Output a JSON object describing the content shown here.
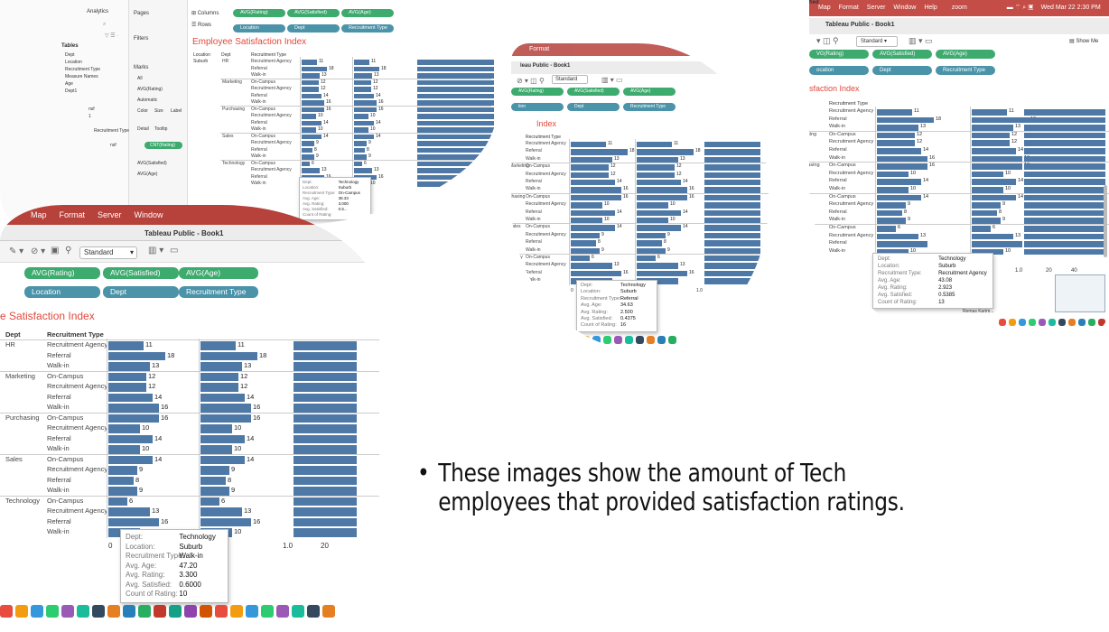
{
  "slide": {
    "bullet": "These images show the amount of Tech employees that provided satisfaction ratings."
  },
  "colors": {
    "bar": "#4e79a7",
    "title": "#e1483b",
    "pill_green": "#3daa6e",
    "pill_blue": "#4a93a8",
    "menu": "#b7413b"
  },
  "screens": {
    "s1": {
      "side_items": [
        "Analytics",
        "Pages",
        "Columns",
        "Rows",
        "Filters",
        "Marks"
      ],
      "tables_header": "Tables",
      "tables": [
        "Dept",
        "Location",
        "Recruitment Type",
        "Measure Names",
        "Age",
        "Dept1"
      ],
      "marks": [
        "All",
        "AVG(Rating)",
        "Automatic",
        "Color",
        "Size",
        "Label",
        "Detail",
        "Tooltip",
        "CNT(Rating)",
        "AVG(Satisfied)",
        "AVG(Age)"
      ],
      "cols": [
        "AVG(Rating)",
        "AVG(Satisfied)",
        "AVG(Age)"
      ],
      "rows": [
        "Location",
        "Dept",
        "Recruitment Type"
      ],
      "title": "Employee Satisfaction Index",
      "hdr": [
        "Location",
        "Dept",
        "Recruitment Type"
      ],
      "location": "Suburb",
      "groups": [
        {
          "dept": "HR",
          "rows": [
            [
              "Recruitment Agency",
              "11"
            ],
            [
              "Referral",
              "18"
            ],
            [
              "Walk-in",
              "13"
            ]
          ]
        },
        {
          "dept": "Marketing",
          "rows": [
            [
              "On-Campus",
              "12"
            ],
            [
              "Recruitment Agency",
              "12"
            ],
            [
              "Referral",
              "14"
            ],
            [
              "Walk-in",
              "16"
            ]
          ]
        },
        {
          "dept": "Purchasing",
          "rows": [
            [
              "On-Campus",
              "16"
            ],
            [
              "Recruitment Agency",
              "10"
            ],
            [
              "Referral",
              "14"
            ],
            [
              "Walk-in",
              "10"
            ]
          ]
        },
        {
          "dept": "Sales",
          "rows": [
            [
              "On-Campus",
              "14"
            ],
            [
              "Recruitment Agency",
              "9"
            ],
            [
              "Referral",
              "8"
            ],
            [
              "Walk-in",
              "9"
            ]
          ]
        },
        {
          "dept": "Technology",
          "rows": [
            [
              "On-Campus",
              "6"
            ],
            [
              "Recruitment Agency",
              "13"
            ],
            [
              "Referral",
              "16"
            ],
            [
              "Walk-in",
              "10"
            ]
          ]
        }
      ],
      "tooltip": [
        [
          "Dept:",
          "Technology"
        ],
        [
          "Location:",
          "Suburb"
        ],
        [
          "Recruitment Type:",
          "On-Campus"
        ],
        [
          "Avg. Age:",
          "38.33"
        ],
        [
          "Avg. Rating:",
          "3.000"
        ],
        [
          "Avg. Satisfied:",
          "0.5..."
        ],
        [
          "Count of Rating:",
          ""
        ]
      ],
      "misc": [
        "Recruitment Type1"
      ]
    },
    "s2": {
      "menu": [
        "Map",
        "Format",
        "Server",
        "Window"
      ],
      "window_title": "Tableau Public - Book1",
      "standard": "Standard",
      "cols": [
        "AVG(Rating)",
        "AVG(Satisfied)",
        "AVG(Age)"
      ],
      "rows": [
        "Location",
        "Dept",
        "Recruitment Type"
      ],
      "title": "e Satisfaction Index",
      "hdr": [
        "Dept",
        "Recruitment Type"
      ],
      "groups": [
        {
          "dept": "HR",
          "rows": [
            [
              "Recruitment Agency",
              "11"
            ],
            [
              "Referral",
              "18"
            ],
            [
              "Walk-in",
              "13"
            ]
          ]
        },
        {
          "dept": "Marketing",
          "rows": [
            [
              "On-Campus",
              "12"
            ],
            [
              "Recruitment Agency",
              "12"
            ],
            [
              "Referral",
              "14"
            ],
            [
              "Walk-in",
              "16"
            ]
          ]
        },
        {
          "dept": "Purchasing",
          "rows": [
            [
              "On-Campus",
              "16"
            ],
            [
              "Recruitment Agency",
              "10"
            ],
            [
              "Referral",
              "14"
            ],
            [
              "Walk-in",
              "10"
            ]
          ]
        },
        {
          "dept": "Sales",
          "rows": [
            [
              "On-Campus",
              "14"
            ],
            [
              "Recruitment Agency",
              "9"
            ],
            [
              "Referral",
              "8"
            ],
            [
              "Walk-in",
              "9"
            ]
          ]
        },
        {
          "dept": "Technology",
          "rows": [
            [
              "On-Campus",
              "6"
            ],
            [
              "Recruitment Agency",
              "13"
            ],
            [
              "Referral",
              "16"
            ],
            [
              "Walk-in",
              "10"
            ]
          ]
        }
      ],
      "tooltip": [
        [
          "Dept:",
          "Technology"
        ],
        [
          "Location:",
          "Suburb"
        ],
        [
          "Recruitment Type:",
          "Walk-in"
        ],
        [
          "Avg. Age:",
          "47.20"
        ],
        [
          "Avg. Rating:",
          "3.300"
        ],
        [
          "Avg. Satisfied:",
          "0.6000"
        ],
        [
          "Count of Rating:",
          "10"
        ]
      ],
      "axis": [
        "0",
        "1.0",
        "20"
      ],
      "axis_title": "fied"
    },
    "s3": {
      "window_title": "leau Public - Book1",
      "standard": "Standard",
      "cols": [
        "AVG(Rating)",
        "AVG(Satisfied)",
        "AVG(Age)"
      ],
      "rows": [
        "tion",
        "Dept",
        "Recruitment Type"
      ],
      "title": "Index",
      "hdr": "Recruitment Type",
      "groups": [
        {
          "dept": "",
          "rows": [
            [
              "Recruitment Agency",
              "11"
            ],
            [
              "Referral",
              "18"
            ],
            [
              "Walk-in",
              "13"
            ]
          ]
        },
        {
          "dept": "Marketing",
          "rows": [
            [
              "On-Campus",
              "12"
            ],
            [
              "Recruitment Agency",
              "12"
            ],
            [
              "Referral",
              "14"
            ],
            [
              "Walk-in",
              "16"
            ]
          ]
        },
        {
          "dept": "chasing",
          "rows": [
            [
              "On-Campus",
              "16"
            ],
            [
              "Recruitment Agency",
              "10"
            ],
            [
              "Referral",
              "14"
            ],
            [
              "Walk-in",
              "10"
            ]
          ]
        },
        {
          "dept": "Sales",
          "rows": [
            [
              "On-Campus",
              "14"
            ],
            [
              "Recruitment Agency",
              "9"
            ],
            [
              "Referral",
              "8"
            ],
            [
              "Walk-in",
              "9"
            ]
          ]
        },
        {
          "dept": "nology",
          "rows": [
            [
              "On-Campus",
              "6"
            ],
            [
              "Recruitment Agency",
              "13"
            ],
            [
              "Referral",
              "16"
            ],
            [
              "Walk-in",
              ""
            ]
          ]
        }
      ],
      "tooltip": [
        [
          "Dept:",
          "Technology"
        ],
        [
          "Location:",
          "Suburb"
        ],
        [
          "Recruitment Type:",
          "Referral"
        ],
        [
          "Avg. Age:",
          "34.63"
        ],
        [
          "Avg. Rating:",
          "2.500"
        ],
        [
          "Avg. Satisfied:",
          "0.4375"
        ],
        [
          "Count of Rating:",
          "16"
        ]
      ],
      "axis": [
        "0",
        "1.0"
      ],
      "axis_title": "fied",
      "menu": "Format"
    },
    "s4": {
      "menu": [
        "Map",
        "Format",
        "Server",
        "Window",
        "Help"
      ],
      "zoom": "zoom",
      "clock": "Wed Mar 22  2:30 PM",
      "window_title": "Tableau Public - Book1",
      "standard": "Standard",
      "show_me": "Show Me",
      "cols": [
        "VG(Rating)",
        "AVG(Satisfied)",
        "AVG(Age)"
      ],
      "rows": [
        "ocation",
        "Dept",
        "Recruitment Type"
      ],
      "title": "sfaction Index",
      "hdr": "Recruitment Type",
      "groups": [
        {
          "dept": "",
          "rows": [
            [
              "Recruitment Agency",
              "11"
            ],
            [
              "Referral",
              "18"
            ],
            [
              "Walk-in",
              "13"
            ]
          ]
        },
        {
          "dept": "Marketing",
          "rows": [
            [
              "On-Campus",
              "12"
            ],
            [
              "Recruitment Agency",
              "12"
            ],
            [
              "Referral",
              "14"
            ],
            [
              "Walk-in",
              "16"
            ]
          ]
        },
        {
          "dept": "Purchasing",
          "rows": [
            [
              "On-Campus",
              "16"
            ],
            [
              "Recruitment Agency",
              "10"
            ],
            [
              "Referral",
              "14"
            ],
            [
              "Walk-in",
              "10"
            ]
          ]
        },
        {
          "dept": "",
          "rows": [
            [
              "On-Campus",
              "14"
            ],
            [
              "Recruitment Agency",
              "9"
            ],
            [
              "Referral",
              "8"
            ],
            [
              "Walk-in",
              "9"
            ]
          ]
        },
        {
          "dept": "",
          "rows": [
            [
              "On-Campus",
              "6"
            ],
            [
              "Recruitment Agency",
              "13"
            ],
            [
              "Referral",
              ""
            ],
            [
              "Walk-in",
              "10"
            ]
          ]
        }
      ],
      "tooltip": [
        [
          "Dept:",
          "Technology"
        ],
        [
          "Location:",
          "Suburb"
        ],
        [
          "Recruitment Type:",
          "Recruitment Agency"
        ],
        [
          "Avg. Age:",
          "43.08"
        ],
        [
          "Avg. Rating:",
          "2.923"
        ],
        [
          "Avg. Satisfied:",
          "0.5385"
        ],
        [
          "Count of Rating:",
          "13"
        ]
      ],
      "axis": [
        "1.0",
        "20",
        "40"
      ],
      "axis_title": "fied",
      "footer_tab": "Remas Karim..."
    }
  }
}
